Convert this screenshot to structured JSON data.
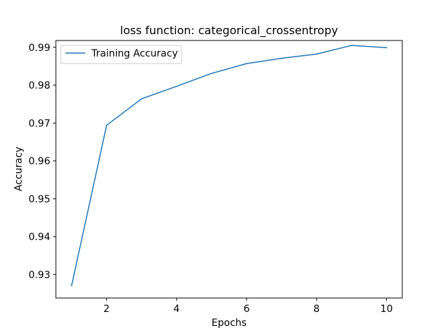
{
  "chart_data": {
    "type": "line",
    "title": "loss function: categorical_crossentropy",
    "xlabel": "Epochs",
    "ylabel": "Accuracy",
    "xlim": [
      0.55,
      10.45
    ],
    "ylim": [
      0.9238,
      0.9918
    ],
    "x_ticks": [
      2,
      4,
      6,
      8,
      10
    ],
    "x_tick_labels": [
      "2",
      "4",
      "6",
      "8",
      "10"
    ],
    "y_ticks": [
      0.93,
      0.94,
      0.95,
      0.96,
      0.97,
      0.98,
      0.99
    ],
    "y_tick_labels": [
      "0.93",
      "0.94",
      "0.95",
      "0.96",
      "0.97",
      "0.98",
      "0.99"
    ],
    "grid": false,
    "legend_position": "upper-left",
    "series": [
      {
        "name": "Training Accuracy",
        "color": "#1f77b4",
        "x": [
          1,
          2,
          3,
          4,
          5,
          6,
          7,
          8,
          9,
          10
        ],
        "y": [
          0.9271,
          0.9694,
          0.9764,
          0.9797,
          0.9831,
          0.9857,
          0.9871,
          0.9882,
          0.9905,
          0.9899
        ]
      }
    ]
  }
}
